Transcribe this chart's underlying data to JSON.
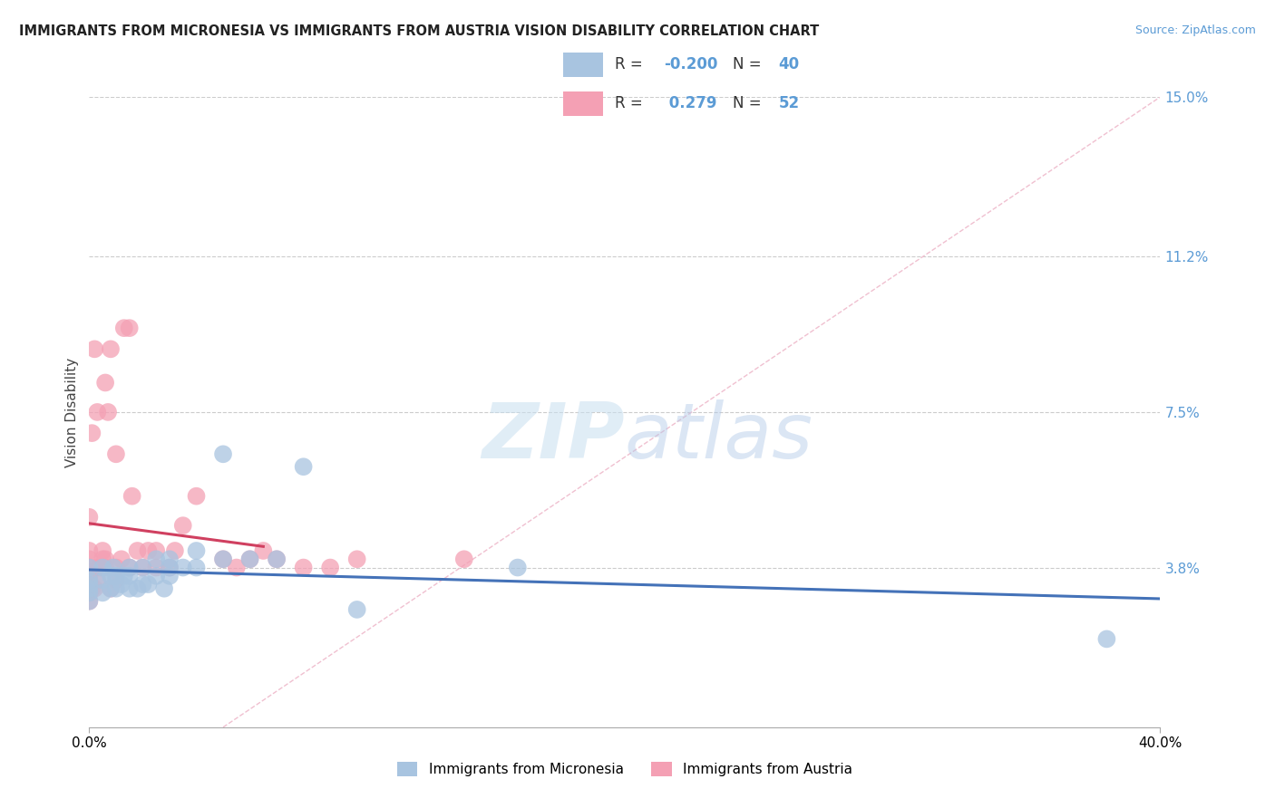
{
  "title": "IMMIGRANTS FROM MICRONESIA VS IMMIGRANTS FROM AUSTRIA VISION DISABILITY CORRELATION CHART",
  "source_text": "Source: ZipAtlas.com",
  "xlabel": "",
  "ylabel": "Vision Disability",
  "xlim": [
    0.0,
    0.4
  ],
  "ylim": [
    0.0,
    0.15
  ],
  "ytick_vals": [
    0.0,
    0.038,
    0.075,
    0.112,
    0.15
  ],
  "ytick_labels": [
    "0%",
    "3.8%",
    "7.5%",
    "11.2%",
    "15.0%"
  ],
  "xtick_vals": [
    0.0,
    0.4
  ],
  "xtick_labels": [
    "0.0%",
    "40.0%"
  ],
  "legend_R1": "-0.200",
  "legend_N1": "40",
  "legend_R2": " 0.279",
  "legend_N2": "52",
  "color_blue": "#a8c4e0",
  "color_blue_line": "#4472b8",
  "color_pink": "#f4a0b4",
  "color_pink_line": "#d04060",
  "color_diag": "#f0c0d0",
  "title_fontsize": 10.5,
  "micronesia_x": [
    0.0,
    0.0,
    0.0,
    0.0,
    0.0,
    0.0,
    0.005,
    0.005,
    0.005,
    0.008,
    0.008,
    0.009,
    0.01,
    0.01,
    0.012,
    0.013,
    0.015,
    0.015,
    0.015,
    0.018,
    0.02,
    0.02,
    0.022,
    0.025,
    0.025,
    0.028,
    0.03,
    0.03,
    0.03,
    0.035,
    0.04,
    0.04,
    0.05,
    0.05,
    0.06,
    0.07,
    0.08,
    0.1,
    0.16,
    0.38
  ],
  "micronesia_y": [
    0.03,
    0.032,
    0.033,
    0.034,
    0.035,
    0.038,
    0.032,
    0.035,
    0.038,
    0.033,
    0.036,
    0.038,
    0.033,
    0.036,
    0.034,
    0.036,
    0.033,
    0.036,
    0.038,
    0.033,
    0.034,
    0.038,
    0.034,
    0.036,
    0.04,
    0.033,
    0.036,
    0.038,
    0.04,
    0.038,
    0.042,
    0.038,
    0.04,
    0.065,
    0.04,
    0.04,
    0.062,
    0.028,
    0.038,
    0.021
  ],
  "austria_x": [
    0.0,
    0.0,
    0.0,
    0.0,
    0.0,
    0.0,
    0.0,
    0.0,
    0.0,
    0.0,
    0.001,
    0.001,
    0.002,
    0.002,
    0.002,
    0.003,
    0.003,
    0.004,
    0.005,
    0.005,
    0.006,
    0.006,
    0.006,
    0.007,
    0.008,
    0.008,
    0.01,
    0.01,
    0.01,
    0.012,
    0.013,
    0.015,
    0.015,
    0.016,
    0.018,
    0.02,
    0.022,
    0.025,
    0.025,
    0.03,
    0.032,
    0.035,
    0.04,
    0.05,
    0.055,
    0.06,
    0.065,
    0.07,
    0.08,
    0.09,
    0.1,
    0.14
  ],
  "austria_y": [
    0.03,
    0.032,
    0.033,
    0.035,
    0.036,
    0.037,
    0.038,
    0.04,
    0.042,
    0.05,
    0.033,
    0.07,
    0.033,
    0.038,
    0.09,
    0.035,
    0.075,
    0.038,
    0.04,
    0.042,
    0.038,
    0.04,
    0.082,
    0.075,
    0.033,
    0.09,
    0.035,
    0.038,
    0.065,
    0.04,
    0.095,
    0.038,
    0.095,
    0.055,
    0.042,
    0.038,
    0.042,
    0.038,
    0.042,
    0.038,
    0.042,
    0.048,
    0.055,
    0.04,
    0.038,
    0.04,
    0.042,
    0.04,
    0.038,
    0.038,
    0.04,
    0.04
  ]
}
